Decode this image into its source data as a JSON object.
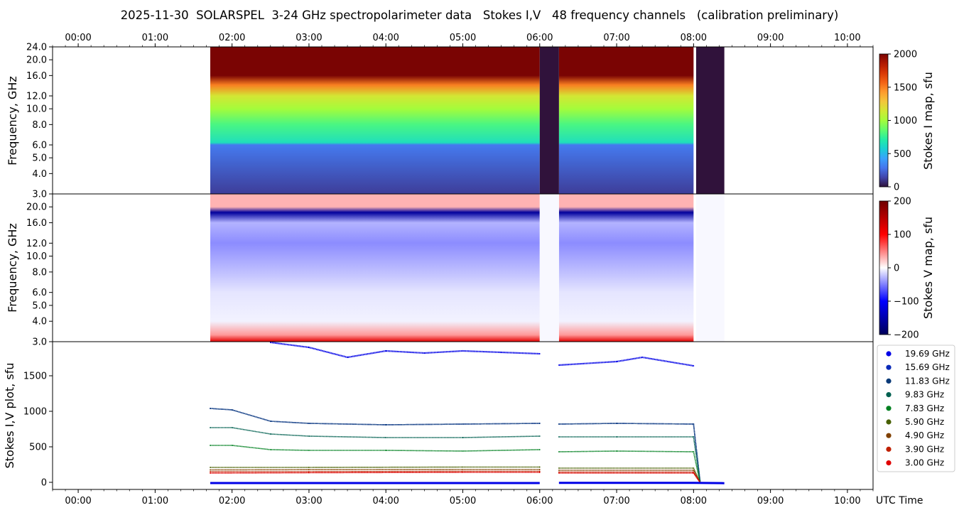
{
  "title": "2025-11-30  SOLARSPEL  3-24 GHz spectropolarimeter data   Stokes I,V   48 frequency channels   (calibration preliminary)",
  "colors": {
    "stokes_i_cmap": [
      "#30123b",
      "#4145ab",
      "#4675ed",
      "#39a2fc",
      "#1bcfd4",
      "#24eca6",
      "#61fc6c",
      "#a4fc3b",
      "#d1e834",
      "#f3c63a",
      "#fe9b2d",
      "#f36315",
      "#d93806",
      "#b11901",
      "#7a0403"
    ],
    "stokes_v_cmap": [
      "#00005a",
      "#0000ff",
      "#ffffff",
      "#ff0000",
      "#6e0000"
    ]
  },
  "chart_data": [
    {
      "type": "heatmap",
      "name": "stokes-i-map",
      "ylabel": "Frequency, GHz",
      "yticks": [
        "3.0",
        "4.0",
        "5.0",
        "6.0",
        "8.0",
        "10.0",
        "12.0",
        "16.0",
        "20.0",
        "24.0"
      ],
      "ylim": [
        3.0,
        24.0
      ],
      "yscale": "log",
      "xticks_top": [
        "00:00",
        "01:00",
        "02:00",
        "03:00",
        "04:00",
        "05:00",
        "06:00",
        "07:00",
        "08:00",
        "09:00",
        "10:00"
      ],
      "xlim": [
        "23:40",
        "10:20"
      ],
      "colorbar": {
        "label": "Stokes I map, sfu",
        "ticks": [
          "0",
          "500",
          "1000",
          "1500",
          "2000"
        ],
        "range": [
          0,
          2000
        ]
      },
      "data_segments": [
        [
          "01:43",
          "06:00"
        ],
        [
          "06:15",
          "08:00"
        ]
      ],
      "gap_segments": [
        [
          "06:00",
          "06:15"
        ],
        [
          "08:02",
          "08:24"
        ]
      ],
      "spectrum_profile": [
        {
          "freq_ghz": 3.0,
          "sfu": 120
        },
        {
          "freq_ghz": 6.0,
          "sfu": 300
        },
        {
          "freq_ghz": 6.2,
          "sfu": 650
        },
        {
          "freq_ghz": 8.0,
          "sfu": 800
        },
        {
          "freq_ghz": 10.0,
          "sfu": 1000
        },
        {
          "freq_ghz": 12.0,
          "sfu": 1150
        },
        {
          "freq_ghz": 14.0,
          "sfu": 1500
        },
        {
          "freq_ghz": 16.0,
          "sfu": 2000
        },
        {
          "freq_ghz": 24.0,
          "sfu": 2000
        }
      ]
    },
    {
      "type": "heatmap",
      "name": "stokes-v-map",
      "ylabel": "Frequency, GHz",
      "yticks": [
        "3.0",
        "4.0",
        "5.0",
        "6.0",
        "8.0",
        "10.0",
        "12.0",
        "16.0",
        "20.0"
      ],
      "ylim": [
        3.0,
        24.0
      ],
      "yscale": "log",
      "colorbar": {
        "label": "Stokes V map, sfu",
        "ticks": [
          "−200",
          "−100",
          "0",
          "100",
          "200"
        ],
        "range": [
          -200,
          200
        ]
      },
      "data_segments": [
        [
          "01:43",
          "06:00"
        ],
        [
          "06:15",
          "08:00"
        ]
      ],
      "gap_segments": [
        [
          "06:00",
          "06:15"
        ],
        [
          "08:02",
          "08:24"
        ]
      ],
      "spectrum_profile": [
        {
          "freq_ghz": 3.0,
          "sfu": 120
        },
        {
          "freq_ghz": 3.3,
          "sfu": 40
        },
        {
          "freq_ghz": 20.0,
          "sfu": 30
        },
        {
          "freq_ghz": 18.5,
          "sfu": -160
        },
        {
          "freq_ghz": 16.0,
          "sfu": -30
        },
        {
          "freq_ghz": 12.0,
          "sfu": -45
        },
        {
          "freq_ghz": 8.0,
          "sfu": -25
        },
        {
          "freq_ghz": 6.0,
          "sfu": -10
        },
        {
          "freq_ghz": 4.0,
          "sfu": -5
        }
      ]
    },
    {
      "type": "scatter",
      "name": "stokes-iv-plot",
      "ylabel": "Stokes I,V plot, sfu",
      "xlabel": "UTC Time",
      "yticks": [
        "0",
        "500",
        "1000",
        "1500"
      ],
      "ylim": [
        -100,
        1980
      ],
      "xticks": [
        "00:00",
        "01:00",
        "02:00",
        "03:00",
        "04:00",
        "05:00",
        "06:00",
        "07:00",
        "08:00",
        "09:00",
        "10:00"
      ],
      "xlim": [
        "23:40",
        "10:20"
      ],
      "legend_position": "right",
      "series": [
        {
          "name": "19.69 GHz",
          "color": "#0000e6",
          "points": [
            [
              "02:30",
              1970
            ],
            [
              "03:00",
              1900
            ],
            [
              "03:30",
              1760
            ],
            [
              "04:00",
              1850
            ],
            [
              "04:30",
              1820
            ],
            [
              "05:00",
              1850
            ],
            [
              "05:30",
              1830
            ],
            [
              "06:00",
              1810
            ],
            [
              "06:15",
              1650
            ],
            [
              "07:00",
              1700
            ],
            [
              "07:20",
              1760
            ],
            [
              "08:00",
              1640
            ]
          ]
        },
        {
          "name": "15.69 GHz",
          "color": "#0a2ab8",
          "points": [
            [
              "01:43",
              1040
            ],
            [
              "02:00",
              1020
            ],
            [
              "02:30",
              860
            ],
            [
              "03:00",
              830
            ],
            [
              "04:00",
              810
            ],
            [
              "05:00",
              820
            ],
            [
              "06:00",
              830
            ],
            [
              "06:15",
              820
            ],
            [
              "07:00",
              830
            ],
            [
              "08:00",
              820
            ],
            [
              "08:05",
              20
            ]
          ]
        },
        {
          "name": "11.83 GHz",
          "color": "#0a3a78",
          "points": [
            [
              "01:43",
              1040
            ],
            [
              "02:00",
              1020
            ],
            [
              "02:30",
              860
            ],
            [
              "03:00",
              830
            ],
            [
              "04:00",
              810
            ],
            [
              "05:00",
              820
            ],
            [
              "06:00",
              830
            ],
            [
              "06:15",
              820
            ],
            [
              "07:00",
              830
            ],
            [
              "08:00",
              820
            ],
            [
              "08:05",
              20
            ]
          ]
        },
        {
          "name": "9.83 GHz",
          "color": "#006050",
          "points": [
            [
              "01:43",
              770
            ],
            [
              "02:00",
              770
            ],
            [
              "02:30",
              680
            ],
            [
              "03:00",
              650
            ],
            [
              "04:00",
              630
            ],
            [
              "05:00",
              630
            ],
            [
              "06:00",
              650
            ],
            [
              "06:15",
              640
            ],
            [
              "07:00",
              640
            ],
            [
              "08:00",
              640
            ],
            [
              "08:05",
              10
            ]
          ]
        },
        {
          "name": "7.83 GHz",
          "color": "#008020",
          "points": [
            [
              "01:43",
              520
            ],
            [
              "02:00",
              520
            ],
            [
              "02:30",
              460
            ],
            [
              "03:00",
              450
            ],
            [
              "04:00",
              450
            ],
            [
              "05:00",
              440
            ],
            [
              "06:00",
              460
            ],
            [
              "06:15",
              430
            ],
            [
              "07:00",
              440
            ],
            [
              "08:00",
              430
            ],
            [
              "08:05",
              0
            ]
          ]
        },
        {
          "name": "5.90 GHz",
          "color": "#486000",
          "points": [
            [
              "01:43",
              210
            ],
            [
              "03:00",
              210
            ],
            [
              "05:00",
              215
            ],
            [
              "06:00",
              215
            ],
            [
              "06:15",
              200
            ],
            [
              "08:00",
              200
            ],
            [
              "08:05",
              0
            ]
          ]
        },
        {
          "name": "4.90 GHz",
          "color": "#804000",
          "points": [
            [
              "01:43",
              175
            ],
            [
              "03:00",
              178
            ],
            [
              "05:00",
              180
            ],
            [
              "06:00",
              180
            ],
            [
              "06:15",
              170
            ],
            [
              "08:00",
              170
            ],
            [
              "08:05",
              0
            ]
          ]
        },
        {
          "name": "3.90 GHz",
          "color": "#c02000",
          "points": [
            [
              "01:43",
              150
            ],
            [
              "03:00",
              150
            ],
            [
              "05:00",
              155
            ],
            [
              "06:00",
              155
            ],
            [
              "06:15",
              145
            ],
            [
              "08:00",
              145
            ],
            [
              "08:05",
              0
            ]
          ]
        },
        {
          "name": "3.00 GHz",
          "color": "#e00000",
          "points": [
            [
              "01:43",
              130
            ],
            [
              "03:00",
              135
            ],
            [
              "05:00",
              140
            ],
            [
              "06:00",
              140
            ],
            [
              "06:15",
              130
            ],
            [
              "08:00",
              130
            ],
            [
              "08:05",
              0
            ]
          ]
        }
      ]
    }
  ]
}
